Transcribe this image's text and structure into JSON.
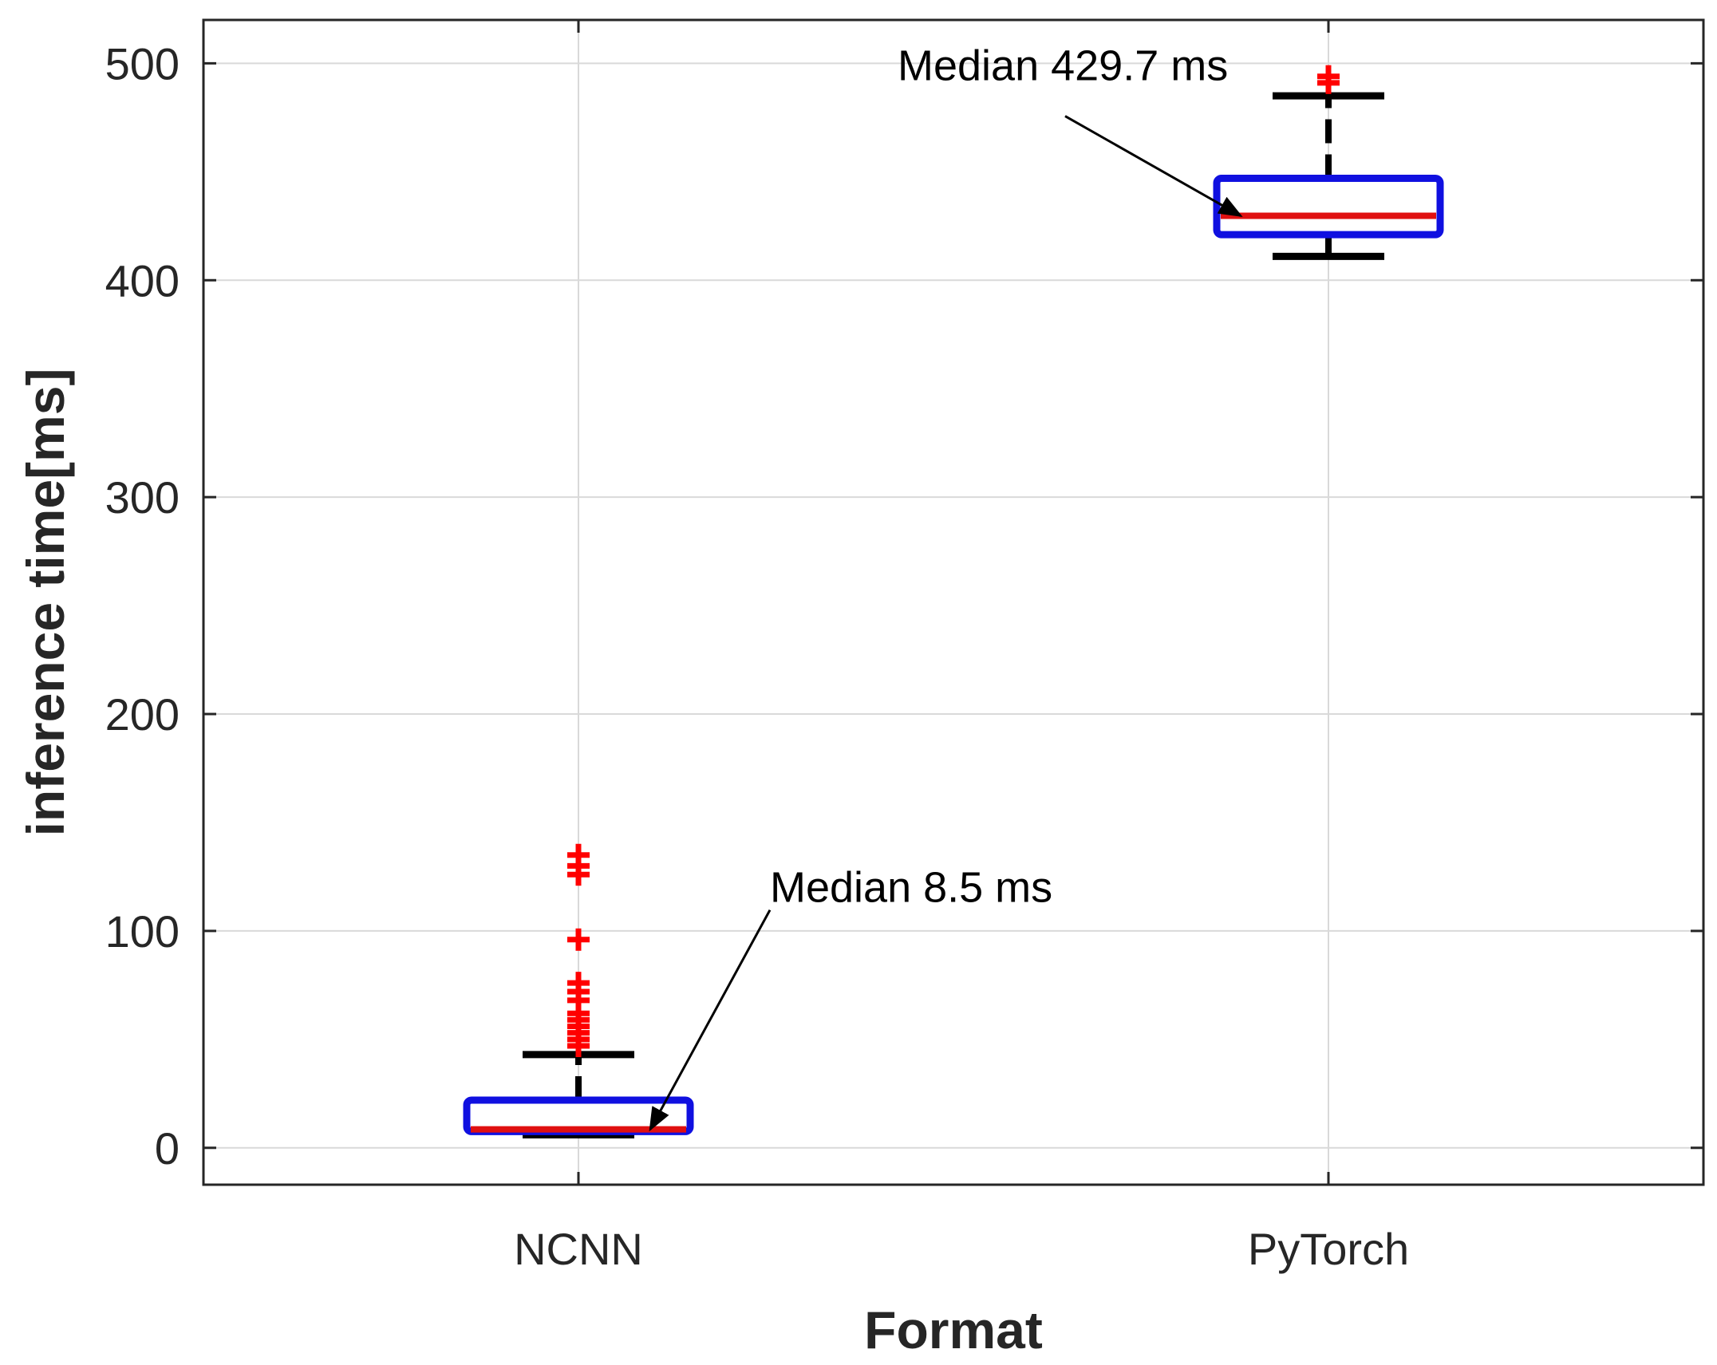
{
  "chart_data": {
    "type": "box",
    "title": "",
    "xlabel": "Format",
    "ylabel": "inference time[ms]",
    "ylim": [
      -17,
      520
    ],
    "yticks": [
      0,
      100,
      200,
      300,
      400,
      500
    ],
    "ytick_labels": [
      "0",
      "100",
      "200",
      "300",
      "400",
      "500"
    ],
    "grid": true,
    "categories": [
      "NCNN",
      "PyTorch"
    ],
    "boxes": [
      {
        "category": "NCNN",
        "median": 8.5,
        "q1": 7.5,
        "q3": 22,
        "whisker_low": 6,
        "whisker_high": 43,
        "outliers": [
          47,
          50,
          53,
          56,
          59,
          62,
          68,
          72,
          76,
          96,
          126,
          130,
          135
        ]
      },
      {
        "category": "PyTorch",
        "median": 429.7,
        "q1": 421,
        "q3": 447,
        "whisker_low": 411,
        "whisker_high": 485,
        "outliers": [
          491,
          494
        ]
      }
    ],
    "annotations": [
      {
        "text": "Median 8.5 ms",
        "category": "NCNN",
        "value": 8.5
      },
      {
        "text": "Median 429.7 ms",
        "category": "PyTorch",
        "value": 429.7
      }
    ],
    "colors": {
      "box": "#1010e0",
      "median": "#e01010",
      "whisker": "#000000",
      "outlier": "#ff0000",
      "grid": "#d9d9d9"
    }
  }
}
